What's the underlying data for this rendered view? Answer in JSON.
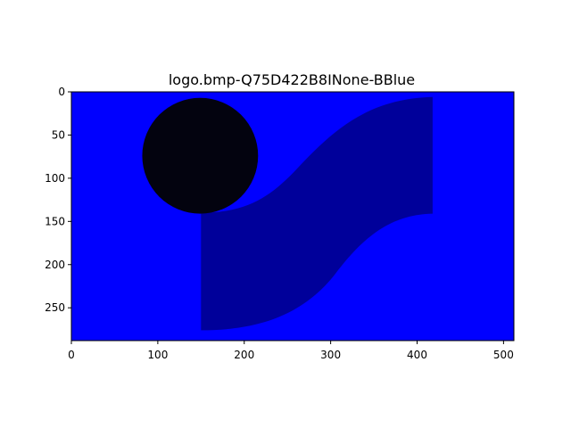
{
  "chart_data": {
    "type": "image",
    "title": "logo.bmp-Q75D422B8INone-BBlue",
    "xlim": [
      0,
      512
    ],
    "ylim": [
      288,
      0
    ],
    "y_axis_inverted": true,
    "xticks": [
      0,
      100,
      200,
      300,
      400,
      500
    ],
    "yticks": [
      0,
      50,
      100,
      150,
      200,
      250
    ],
    "grid": false,
    "legend": "none",
    "image_content": {
      "background_color": "#0000ff",
      "circle": {
        "center": [
          149,
          74
        ],
        "radius": 67,
        "color": "#03030f"
      },
      "s_shape_color": "#00009a"
    }
  }
}
